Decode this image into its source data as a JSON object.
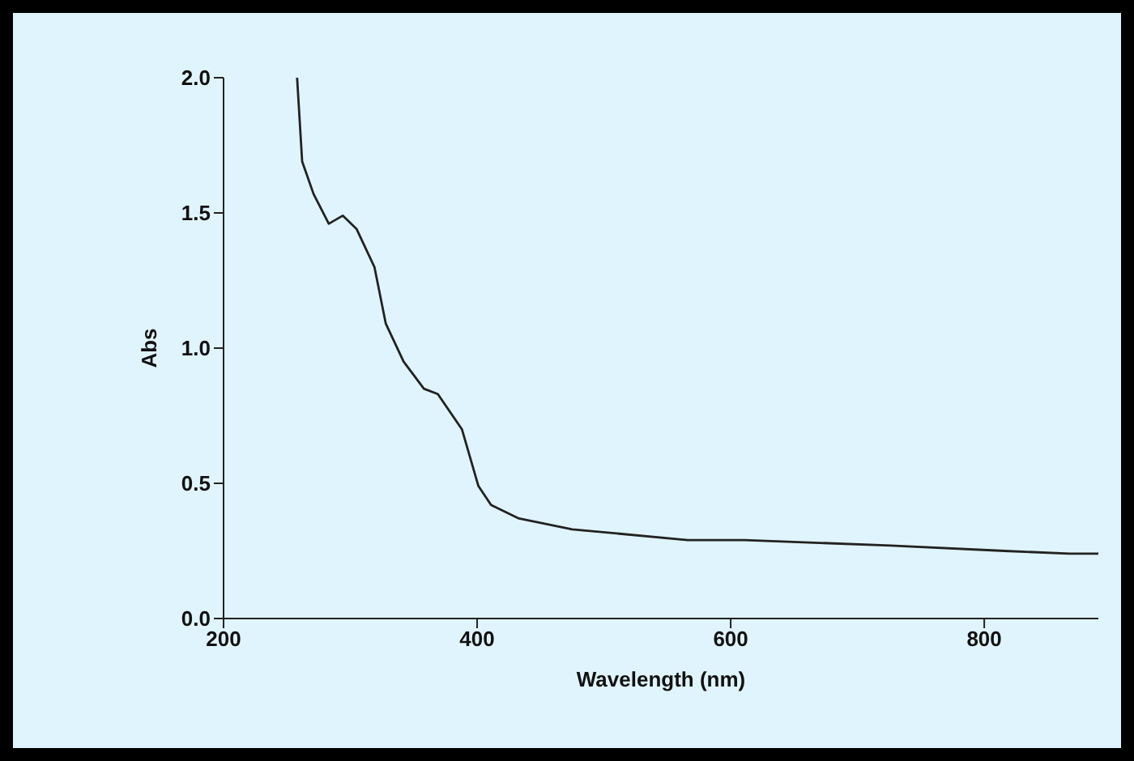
{
  "chart_data": {
    "type": "line",
    "xlabel": "Wavelength (nm)",
    "ylabel": "Abs",
    "xlim": [
      200,
      890
    ],
    "xticks": [
      200,
      400,
      600,
      800
    ],
    "ylim": [
      0,
      2
    ],
    "yticks": [
      {
        "value": 0,
        "label": "0.0"
      },
      {
        "value": 0.5,
        "label": "0.5"
      },
      {
        "value": 1,
        "label": "1.0"
      },
      {
        "value": 1.5,
        "label": "1.5"
      },
      {
        "value": 2,
        "label": "2.0"
      }
    ],
    "marker": "none",
    "line_style": "solid",
    "series": [
      {
        "color": "#222222",
        "x": [
          258,
          262,
          271,
          283,
          294,
          305,
          319,
          328,
          342,
          358,
          369,
          388,
          401,
          411,
          433,
          475,
          566,
          611,
          726,
          816,
          867,
          890
        ],
        "values": [
          2.0,
          1.69,
          1.57,
          1.46,
          1.49,
          1.44,
          1.3,
          1.09,
          0.95,
          0.85,
          0.83,
          0.7,
          0.49,
          0.42,
          0.37,
          0.33,
          0.29,
          0.29,
          0.27,
          0.25,
          0.24,
          0.24
        ]
      }
    ]
  }
}
